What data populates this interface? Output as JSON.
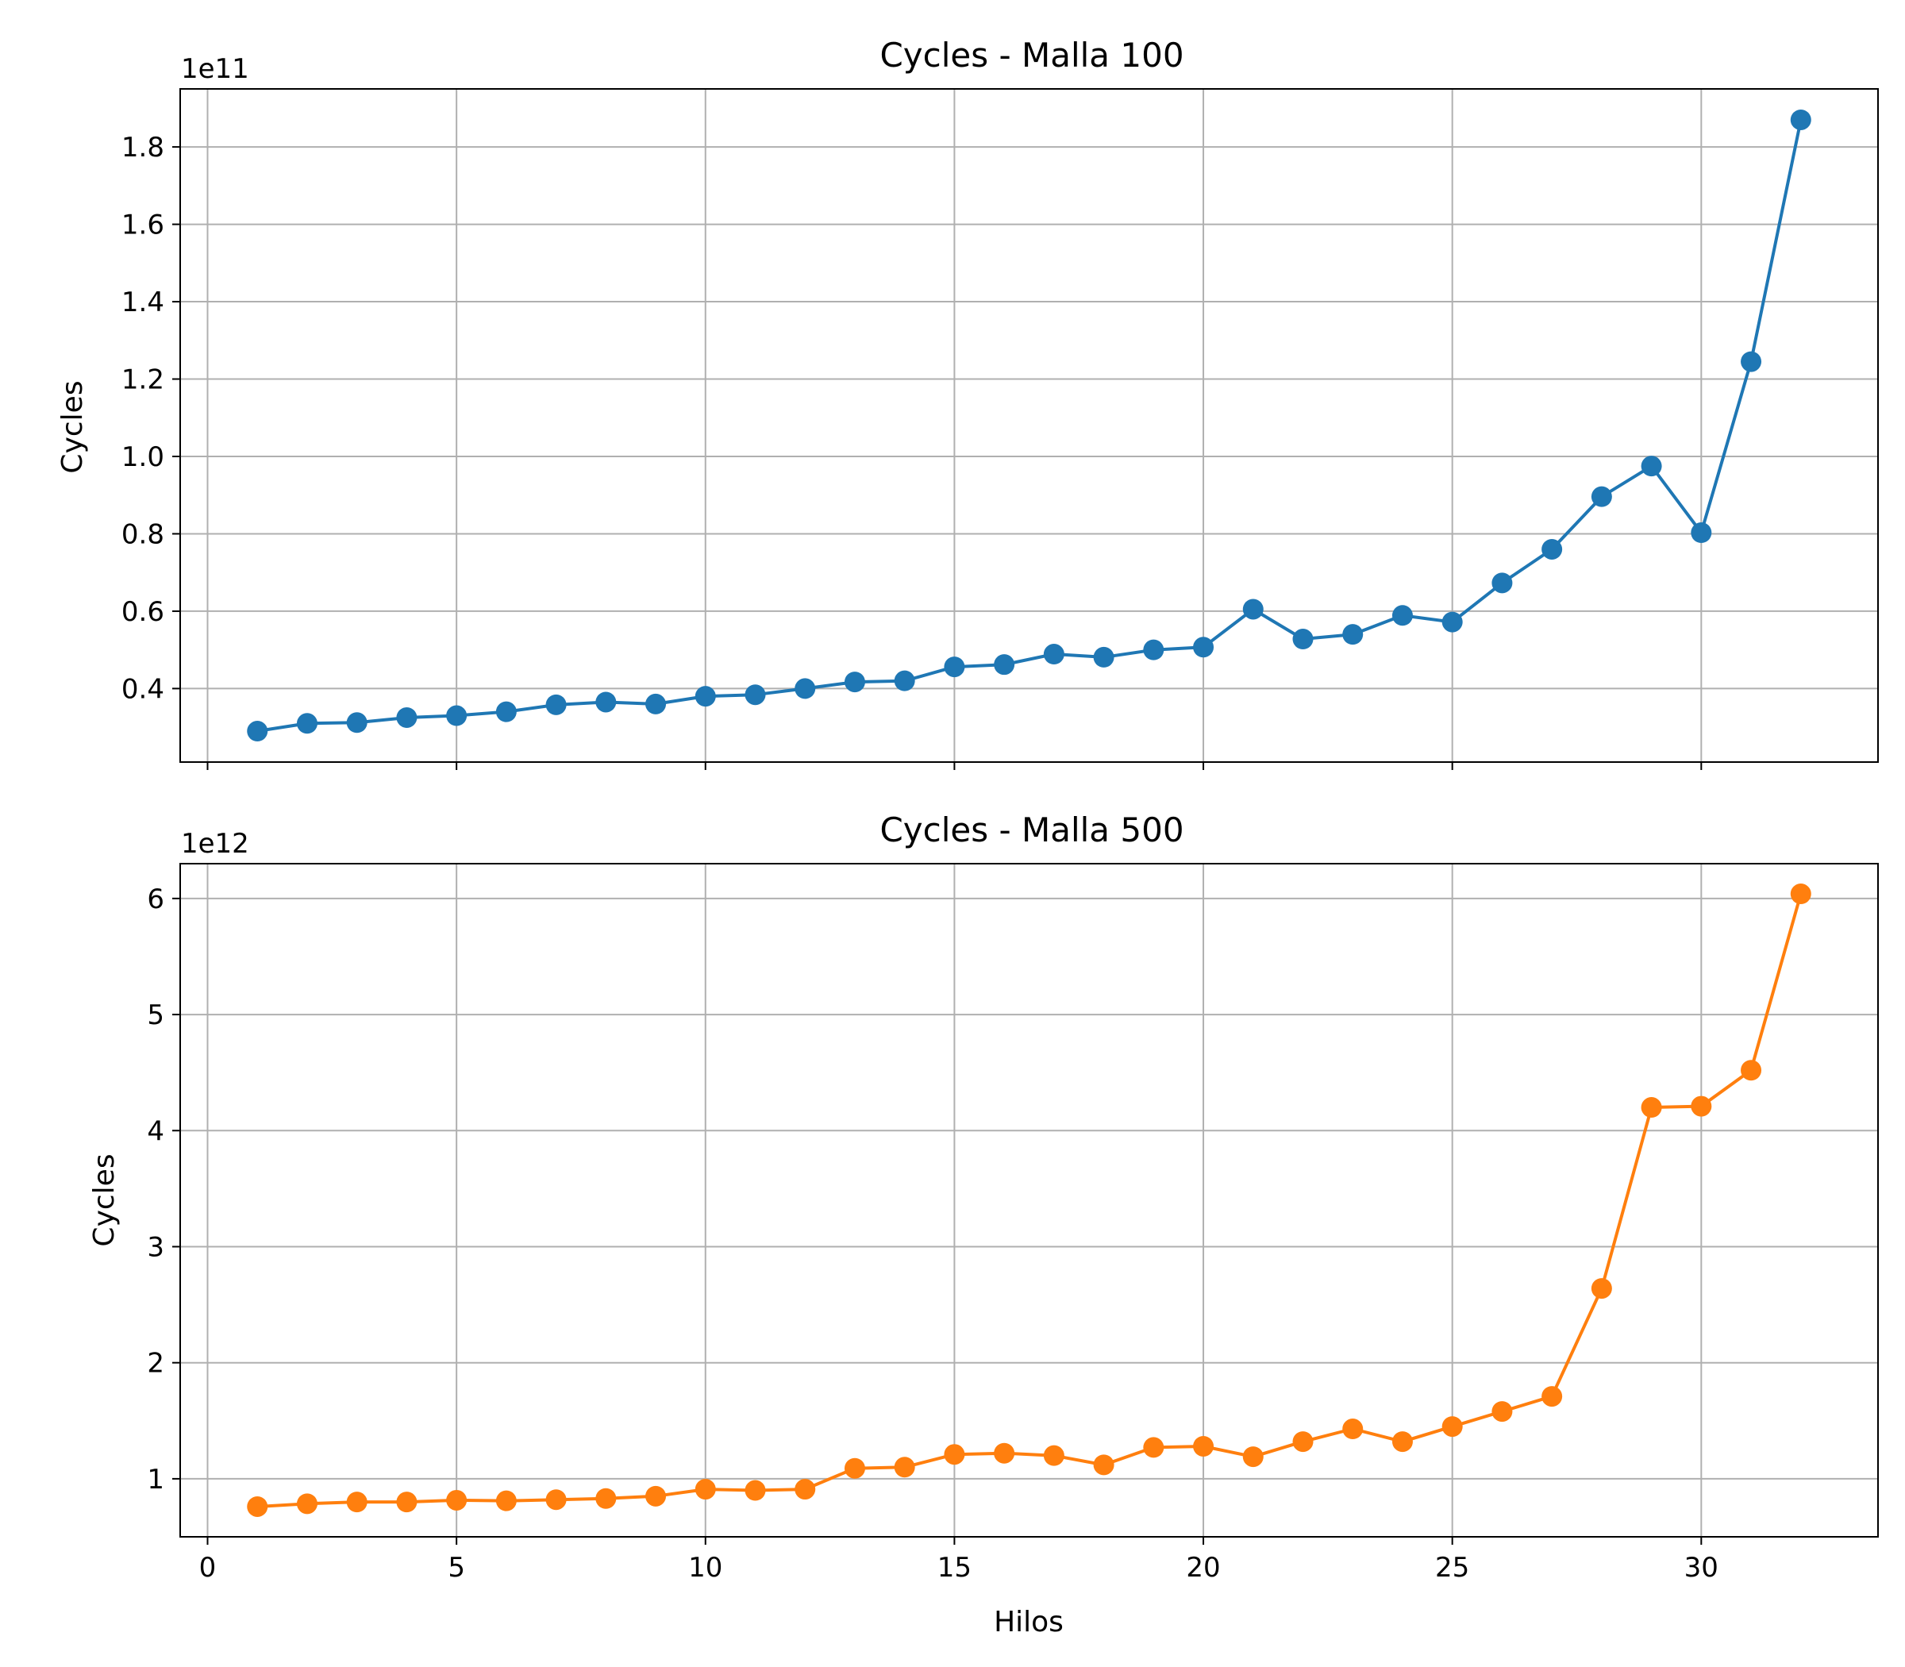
{
  "colors": {
    "series_1": "#1f77b4",
    "series_2": "#ff7f0e",
    "grid": "#b0b0b0",
    "axes": "#000000"
  },
  "chart_data": [
    {
      "type": "line",
      "title": "Cycles - Malla 100",
      "xlabel": "",
      "ylabel": "Cycles",
      "y_offset_label": "1e11",
      "y_scale": 100000000000.0,
      "xlim": [
        -0.55,
        33.55
      ],
      "ylim": [
        21000000000.0,
        195000000000.0
      ],
      "x_ticks": [
        0,
        5,
        10,
        15,
        20,
        25,
        30
      ],
      "x_tick_labels_visible": false,
      "y_ticks": [
        40000000000.0,
        60000000000.0,
        80000000000.0,
        100000000000.0,
        120000000000.0,
        140000000000.0,
        160000000000.0,
        180000000000.0
      ],
      "y_tick_labels": [
        "0.4",
        "0.6",
        "0.8",
        "1.0",
        "1.2",
        "1.4",
        "1.6",
        "1.8"
      ],
      "grid": true,
      "marker": "circle",
      "color": "#1f77b4",
      "x": [
        1,
        2,
        3,
        4,
        5,
        6,
        7,
        8,
        9,
        10,
        11,
        12,
        13,
        14,
        15,
        16,
        17,
        18,
        19,
        20,
        21,
        22,
        23,
        24,
        25,
        26,
        27,
        28,
        29,
        30,
        31,
        32
      ],
      "y": [
        29000000000.0,
        31000000000.0,
        31200000000.0,
        32500000000.0,
        33000000000.0,
        34000000000.0,
        35800000000.0,
        36500000000.0,
        36000000000.0,
        38000000000.0,
        38400000000.0,
        40000000000.0,
        41700000000.0,
        42000000000.0,
        45600000000.0,
        46200000000.0,
        48900000000.0,
        48100000000.0,
        50000000000.0,
        50700000000.0,
        60500000000.0,
        52800000000.0,
        54000000000.0,
        58900000000.0,
        57200000000.0,
        67300000000.0,
        76000000000.0,
        89600000000.0,
        97500000000.0,
        80300000000.0,
        124500000000.0,
        187000000000.0
      ]
    },
    {
      "type": "line",
      "title": "Cycles - Malla 500",
      "xlabel": "Hilos",
      "ylabel": "Cycles",
      "y_offset_label": "1e12",
      "y_scale": 1000000000000.0,
      "xlim": [
        -0.55,
        33.55
      ],
      "ylim": [
        500000000000.0,
        6300000000000.0
      ],
      "x_ticks": [
        0,
        5,
        10,
        15,
        20,
        25,
        30
      ],
      "x_tick_labels": [
        "0",
        "5",
        "10",
        "15",
        "20",
        "25",
        "30"
      ],
      "x_tick_labels_visible": true,
      "y_ticks": [
        1000000000000.0,
        2000000000000.0,
        3000000000000.0,
        4000000000000.0,
        5000000000000.0,
        6000000000000.0
      ],
      "y_tick_labels": [
        "1",
        "2",
        "3",
        "4",
        "5",
        "6"
      ],
      "grid": true,
      "marker": "circle",
      "color": "#ff7f0e",
      "x": [
        1,
        2,
        3,
        4,
        5,
        6,
        7,
        8,
        9,
        10,
        11,
        12,
        13,
        14,
        15,
        16,
        17,
        18,
        19,
        20,
        21,
        22,
        23,
        24,
        25,
        26,
        27,
        28,
        29,
        30,
        31,
        32
      ],
      "y": [
        760000000000.0,
        785000000000.0,
        800000000000.0,
        800000000000.0,
        815000000000.0,
        810000000000.0,
        820000000000.0,
        830000000000.0,
        850000000000.0,
        910000000000.0,
        900000000000.0,
        910000000000.0,
        1090000000000.0,
        1100000000000.0,
        1210000000000.0,
        1220000000000.0,
        1200000000000.0,
        1120000000000.0,
        1270000000000.0,
        1280000000000.0,
        1190000000000.0,
        1320000000000.0,
        1430000000000.0,
        1320000000000.0,
        1450000000000.0,
        1580000000000.0,
        1710000000000.0,
        2640000000000.0,
        4200000000000.0,
        4210000000000.0,
        4520000000000.0,
        6040000000000.0
      ]
    }
  ]
}
